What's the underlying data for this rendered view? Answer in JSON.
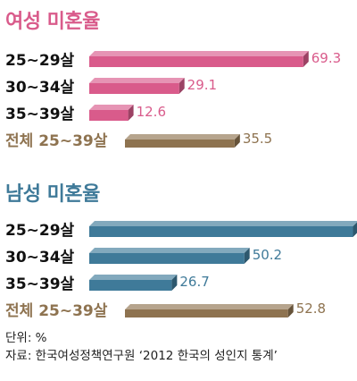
{
  "colors": {
    "women": "#d95b8b",
    "men": "#3f7a99",
    "total": "#8e7350"
  },
  "chart_data": [
    {
      "type": "bar",
      "title": "여성 미혼율",
      "categories": [
        "25~29살",
        "30~34살",
        "35~39살",
        "전체 25~39살"
      ],
      "values": [
        69.3,
        29.1,
        12.6,
        35.5
      ],
      "xlim": [
        0,
        90
      ],
      "color_key": [
        "women",
        "women",
        "women",
        "total"
      ]
    },
    {
      "type": "bar",
      "title": "남성 미혼율",
      "categories": [
        "25~29살",
        "30~34살",
        "35~39살",
        "전체 25~39살"
      ],
      "values": [
        85.4,
        50.2,
        26.7,
        52.8
      ],
      "xlim": [
        0,
        90
      ],
      "color_key": [
        "men",
        "men",
        "men",
        "total"
      ]
    }
  ],
  "footer": {
    "unit": "단위: %",
    "source": "자료: 한국여성정책연구원 ‘2012 한국의 성인지 통계’"
  }
}
